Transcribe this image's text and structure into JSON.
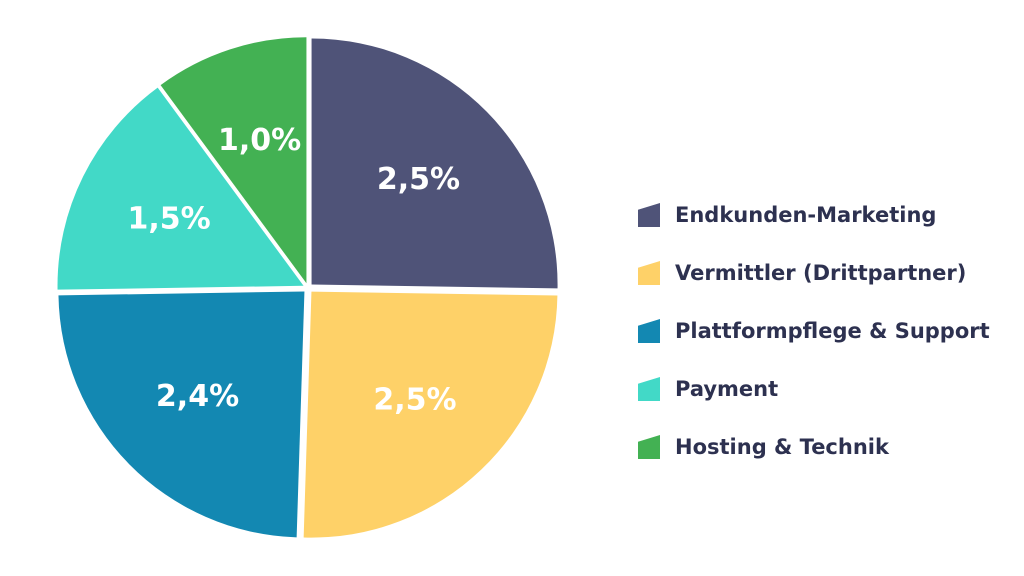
{
  "chart_data": {
    "type": "pie",
    "title": "",
    "legend_position": "right",
    "slices": [
      {
        "label": "Endkunden-Marketing",
        "value": 2.5,
        "display": "2,5%",
        "color": "#4f5378"
      },
      {
        "label": "Vermittler (Drittpartner)",
        "value": 2.5,
        "display": "2,5%",
        "color": "#fed168"
      },
      {
        "label": "Plattformpflege & Support",
        "value": 2.4,
        "display": "2,4%",
        "color": "#1388b2"
      },
      {
        "label": "Payment",
        "value": 1.5,
        "display": "1,5%",
        "color": "#42d9c7"
      },
      {
        "label": "Hosting & Technik",
        "value": 1.0,
        "display": "1,0%",
        "color": "#43b153"
      }
    ]
  }
}
